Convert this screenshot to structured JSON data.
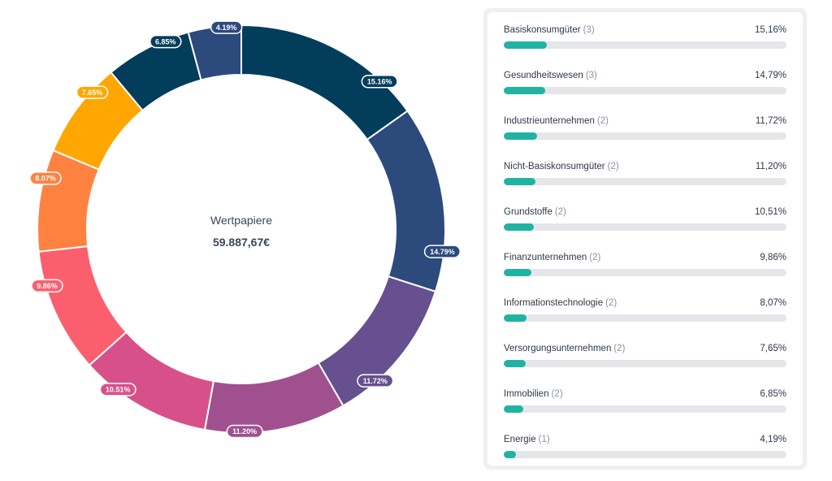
{
  "chart_data": {
    "type": "pie",
    "center_title": "Wertpapiere",
    "center_value": "59.887,67€",
    "slices": [
      {
        "label": "Basiskonsumgüter",
        "count": "(3)",
        "value": 15.16,
        "donut_label": "15.16%",
        "list_label": "15,16%",
        "color": "#033d5c"
      },
      {
        "label": "Gesundheitswesen",
        "count": "(3)",
        "value": 14.79,
        "donut_label": "14.79%",
        "list_label": "14,79%",
        "color": "#2d4a7d"
      },
      {
        "label": "Industrieunternehmen",
        "count": "(2)",
        "value": 11.72,
        "donut_label": "11.72%",
        "list_label": "11,72%",
        "color": "#66508f"
      },
      {
        "label": "Nicht-Basiskonsumgüter",
        "count": "(2)",
        "value": 11.2,
        "donut_label": "11.20%",
        "list_label": "11,20%",
        "color": "#a0508f"
      },
      {
        "label": "Grundstoffe",
        "count": "(2)",
        "value": 10.51,
        "donut_label": "10.51%",
        "list_label": "10,51%",
        "color": "#d8508a"
      },
      {
        "label": "Finanzunternehmen",
        "count": "(2)",
        "value": 9.86,
        "donut_label": "9.86%",
        "list_label": "9,86%",
        "color": "#fb5f6e"
      },
      {
        "label": "Informationstechnologie",
        "count": "(2)",
        "value": 8.07,
        "donut_label": "8.07%",
        "list_label": "8,07%",
        "color": "#ff8241"
      },
      {
        "label": "Versorgungsunternehmen",
        "count": "(2)",
        "value": 7.65,
        "donut_label": "7.65%",
        "list_label": "7,65%",
        "color": "#ffa600"
      },
      {
        "label": "Immobilien",
        "count": "(2)",
        "value": 6.85,
        "donut_label": "6.85%",
        "list_label": "6,85%",
        "color": "#033d5c"
      },
      {
        "label": "Energie",
        "count": "(1)",
        "value": 4.19,
        "donut_label": "4.19%",
        "list_label": "4,19%",
        "color": "#2d4a7d"
      }
    ],
    "bar_max": 100,
    "bar_color": "#21b3a1"
  }
}
